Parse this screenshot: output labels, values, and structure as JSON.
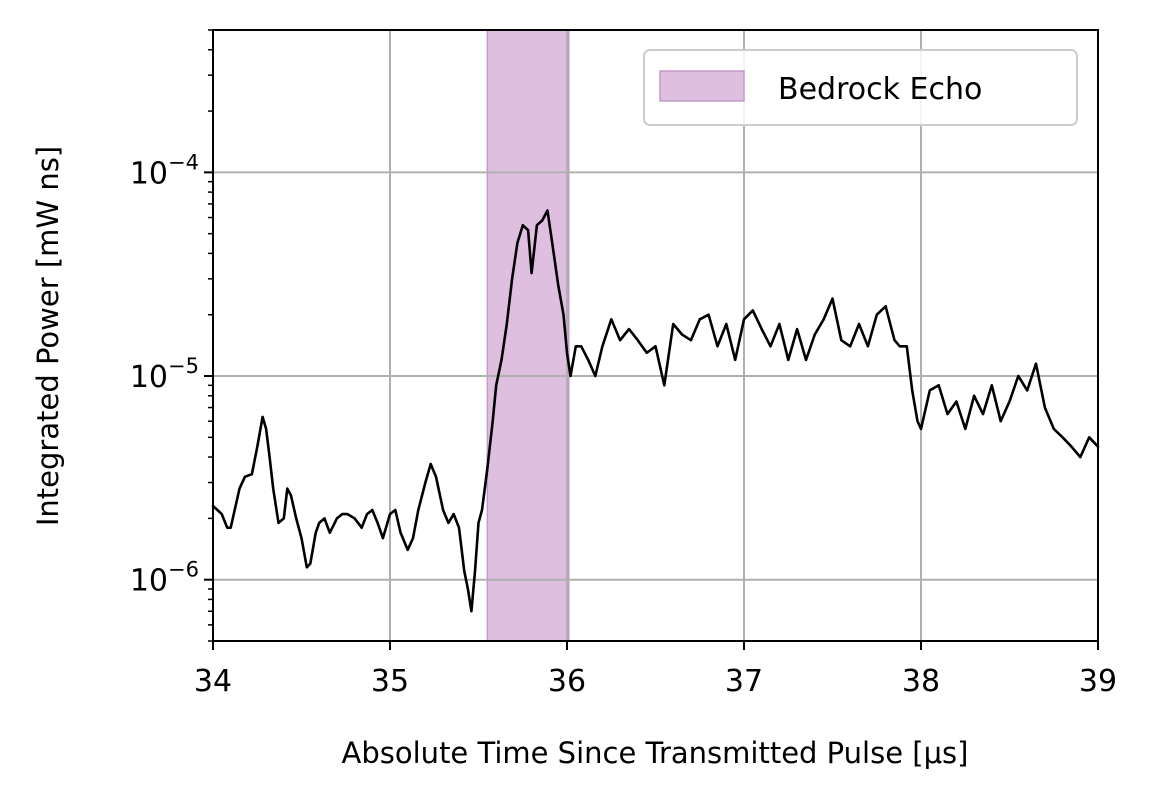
{
  "chart_data": {
    "type": "line",
    "title": "",
    "xlabel": "Absolute Time Since Transmitted Pulse [μs]",
    "ylabel": "Integrated Power [mW ns]",
    "xlim": [
      34,
      39
    ],
    "ylim": [
      5e-07,
      0.0005
    ],
    "yscale": "log",
    "grid": true,
    "legend_position": "top-right",
    "x_ticks": [
      34,
      35,
      36,
      37,
      38,
      39
    ],
    "x_tick_labels": [
      "34",
      "35",
      "36",
      "37",
      "38",
      "39"
    ],
    "y_ticks": [
      1e-06,
      1e-05,
      0.0001
    ],
    "y_tick_labels": [
      {
        "base": "10",
        "exp": "−6"
      },
      {
        "base": "10",
        "exp": "−5"
      },
      {
        "base": "10",
        "exp": "−4"
      }
    ],
    "shaded_region": {
      "label": "Bedrock Echo",
      "x_start": 35.55,
      "x_end": 36.01,
      "color": "#dfbfdf",
      "edge_color": "#c49ac9"
    },
    "series": [
      {
        "color": "#000000",
        "x": [
          34.0,
          34.05,
          34.08,
          34.1,
          34.15,
          34.18,
          34.22,
          34.25,
          34.28,
          34.3,
          34.32,
          34.34,
          34.37,
          34.4,
          34.42,
          34.44,
          34.47,
          34.5,
          34.53,
          34.55,
          34.58,
          34.6,
          34.63,
          34.66,
          34.7,
          34.73,
          34.76,
          34.8,
          34.84,
          34.87,
          34.9,
          34.93,
          34.96,
          35.0,
          35.03,
          35.06,
          35.1,
          35.13,
          35.16,
          35.2,
          35.23,
          35.26,
          35.3,
          35.33,
          35.36,
          35.39,
          35.42,
          35.44,
          35.46,
          35.48,
          35.5,
          35.52,
          35.55,
          35.58,
          35.6,
          35.63,
          35.66,
          35.69,
          35.72,
          35.75,
          35.78,
          35.8,
          35.83,
          35.86,
          35.89,
          35.92,
          35.95,
          35.98,
          36.0,
          36.02,
          36.05,
          36.08,
          36.12,
          36.16,
          36.2,
          36.25,
          36.3,
          36.35,
          36.4,
          36.45,
          36.5,
          36.55,
          36.6,
          36.65,
          36.7,
          36.75,
          36.8,
          36.85,
          36.9,
          36.95,
          37.0,
          37.05,
          37.1,
          37.15,
          37.2,
          37.25,
          37.3,
          37.35,
          37.4,
          37.45,
          37.5,
          37.55,
          37.6,
          37.65,
          37.7,
          37.75,
          37.8,
          37.85,
          37.88,
          37.92,
          37.95,
          37.98,
          38.0,
          38.05,
          38.1,
          38.15,
          38.2,
          38.25,
          38.3,
          38.35,
          38.4,
          38.45,
          38.5,
          38.55,
          38.6,
          38.65,
          38.7,
          38.75,
          38.8,
          38.85,
          38.9,
          38.95,
          39.0
        ],
        "y": [
          2.3e-06,
          2.1e-06,
          1.8e-06,
          1.8e-06,
          2.8e-06,
          3.2e-06,
          3.3e-06,
          4.5e-06,
          6.3e-06,
          5.5e-06,
          4e-06,
          2.8e-06,
          1.9e-06,
          2e-06,
          2.8e-06,
          2.6e-06,
          2e-06,
          1.6e-06,
          1.15e-06,
          1.2e-06,
          1.7e-06,
          1.9e-06,
          2e-06,
          1.7e-06,
          2e-06,
          2.1e-06,
          2.1e-06,
          2e-06,
          1.8e-06,
          2.1e-06,
          2.2e-06,
          1.9e-06,
          1.6e-06,
          2.1e-06,
          2.2e-06,
          1.7e-06,
          1.4e-06,
          1.6e-06,
          2.2e-06,
          3e-06,
          3.7e-06,
          3.2e-06,
          2.2e-06,
          1.9e-06,
          2.1e-06,
          1.8e-06,
          1.1e-06,
          9e-07,
          7e-07,
          1.1e-06,
          1.9e-06,
          2.2e-06,
          3.5e-06,
          6e-06,
          9e-06,
          1.2e-05,
          1.8e-05,
          3e-05,
          4.5e-05,
          5.5e-05,
          5.2e-05,
          3.2e-05,
          5.5e-05,
          5.8e-05,
          6.5e-05,
          4.3e-05,
          2.8e-05,
          2e-05,
          1.3e-05,
          1e-05,
          1.4e-05,
          1.4e-05,
          1.2e-05,
          1e-05,
          1.4e-05,
          1.9e-05,
          1.5e-05,
          1.7e-05,
          1.5e-05,
          1.3e-05,
          1.4e-05,
          9e-06,
          1.8e-05,
          1.6e-05,
          1.5e-05,
          1.9e-05,
          2e-05,
          1.4e-05,
          1.8e-05,
          1.2e-05,
          1.9e-05,
          2.1e-05,
          1.7e-05,
          1.4e-05,
          1.8e-05,
          1.2e-05,
          1.7e-05,
          1.2e-05,
          1.6e-05,
          1.9e-05,
          2.4e-05,
          1.5e-05,
          1.4e-05,
          1.8e-05,
          1.4e-05,
          2e-05,
          2.2e-05,
          1.5e-05,
          1.4e-05,
          1.4e-05,
          8.5e-06,
          6e-06,
          5.5e-06,
          8.5e-06,
          9e-06,
          6.5e-06,
          7.5e-06,
          5.5e-06,
          8e-06,
          6.5e-06,
          9e-06,
          6e-06,
          7.5e-06,
          1e-05,
          8.5e-06,
          1.15e-05,
          7e-06,
          5.5e-06,
          5e-06,
          4.5e-06,
          4e-06,
          5e-06,
          4.5e-06
        ]
      }
    ]
  }
}
